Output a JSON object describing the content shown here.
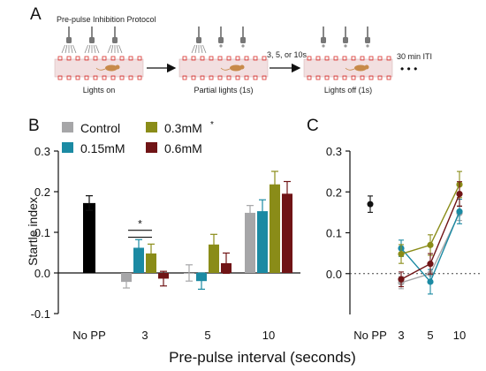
{
  "panels": {
    "a": "A",
    "b": "B",
    "c": "C"
  },
  "protocol": {
    "title": "Pre-pulse Inhibition Protocol",
    "stages": [
      {
        "label": "Lights on",
        "lamps": "on"
      },
      {
        "label": "Partial lights (1s)",
        "lamps": "partial"
      },
      {
        "label": "Lights off (1s)",
        "lamps": "off"
      }
    ],
    "interval_label": "3, 5, or 10s",
    "iti_label": "30 min ITI",
    "ellipsis": "• • •"
  },
  "colors": {
    "Control": "#a6a6a8",
    "0.15mM": "#1b8aa3",
    "0.3mM": "#8a8c18",
    "0.6mM": "#701416",
    "NoPP": "#000000",
    "tray": "#f2dfe0",
    "tray_dot": "#d9302c",
    "mouse": "#c78a4a"
  },
  "legend": {
    "entries": [
      {
        "key": "Control",
        "label": "Control",
        "mark": ""
      },
      {
        "key": "0.3mM",
        "label": "0.3mM",
        "mark": "*"
      },
      {
        "key": "0.15mM",
        "label": "0.15mM",
        "mark": ""
      },
      {
        "key": "0.6mM",
        "label": "0.6mM",
        "mark": ""
      }
    ]
  },
  "shared_xlabel": "Pre-pulse interval (seconds)",
  "chart_data": [
    {
      "panel": "B",
      "type": "bar",
      "ylabel": "Startle index",
      "ylim": [
        -0.1,
        0.3
      ],
      "yticks": [
        -0.1,
        0.0,
        0.1,
        0.2,
        0.3
      ],
      "ytick_labels": [
        "-0.1",
        "0.0",
        "0.1",
        "0.2",
        "0.3"
      ],
      "categories": [
        "No PP",
        "3",
        "5",
        "10"
      ],
      "nopp": {
        "value": 0.172,
        "err": 0.018
      },
      "series": [
        {
          "name": "Control",
          "values": [
            null,
            -0.022,
            0.0,
            0.148
          ],
          "errors": [
            null,
            0.015,
            0.02,
            0.018
          ]
        },
        {
          "name": "0.15mM",
          "values": [
            null,
            0.062,
            -0.02,
            0.152
          ],
          "errors": [
            null,
            0.02,
            0.02,
            0.028
          ]
        },
        {
          "name": "0.3mM",
          "values": [
            null,
            0.048,
            0.07,
            0.218
          ],
          "errors": [
            null,
            0.023,
            0.025,
            0.032
          ]
        },
        {
          "name": "0.6mM",
          "values": [
            null,
            -0.014,
            0.024,
            0.195
          ],
          "errors": [
            null,
            0.018,
            0.025,
            0.03
          ]
        }
      ],
      "significance": {
        "category": "3",
        "label": "*"
      },
      "zero_line": true
    },
    {
      "panel": "C",
      "type": "line",
      "ylim": [
        -0.1,
        0.3
      ],
      "yticks": [
        0.0,
        0.1,
        0.2,
        0.3
      ],
      "ytick_labels": [
        "0.0",
        "0.1",
        "0.2",
        "0.3"
      ],
      "categories": [
        "No PP",
        "3",
        "5",
        "10"
      ],
      "nopp": {
        "value": 0.17,
        "err": 0.02
      },
      "series": [
        {
          "name": "Control",
          "values": [
            null,
            -0.022,
            0.0,
            0.148
          ],
          "errors": [
            null,
            0.015,
            0.02,
            0.018
          ]
        },
        {
          "name": "0.15mM",
          "values": [
            null,
            0.062,
            -0.02,
            0.152
          ],
          "errors": [
            null,
            0.02,
            0.03,
            0.03
          ]
        },
        {
          "name": "0.3mM",
          "values": [
            null,
            0.048,
            0.07,
            0.218
          ],
          "errors": [
            null,
            0.023,
            0.025,
            0.032
          ]
        },
        {
          "name": "0.6mM",
          "values": [
            null,
            -0.014,
            0.024,
            0.195
          ],
          "errors": [
            null,
            0.018,
            0.025,
            0.03
          ]
        }
      ],
      "zero_line": "dotted"
    }
  ]
}
